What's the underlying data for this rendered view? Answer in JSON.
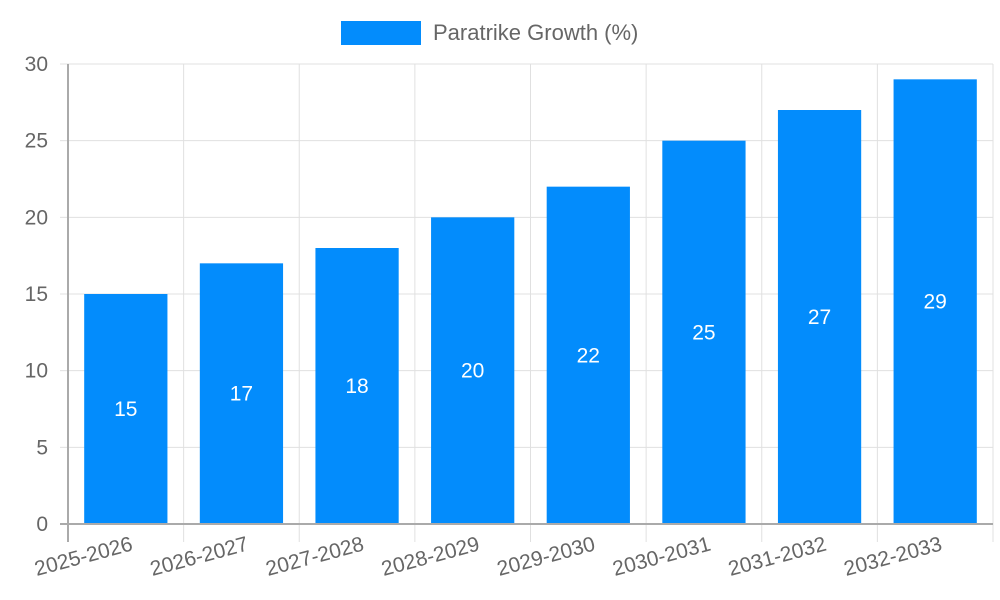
{
  "chart_data": {
    "type": "bar",
    "title": "",
    "categories": [
      "2025-2026",
      "2026-2027",
      "2027-2028",
      "2028-2029",
      "2029-2030",
      "2030-2031",
      "2031-2032",
      "2032-2033"
    ],
    "series": [
      {
        "name": "Paratrike Growth (%)",
        "values": [
          15,
          17,
          18,
          20,
          22,
          25,
          27,
          29
        ],
        "color": "#038cfc"
      }
    ],
    "xlabel": "",
    "ylabel": "",
    "ylim": [
      0,
      30
    ],
    "yticks": [
      0,
      5,
      10,
      15,
      20,
      25,
      30
    ],
    "grid": true,
    "legend_position": "top",
    "data_labels": true
  },
  "legend": {
    "label": "Paratrike Growth (%)",
    "color": "#038cfc"
  }
}
